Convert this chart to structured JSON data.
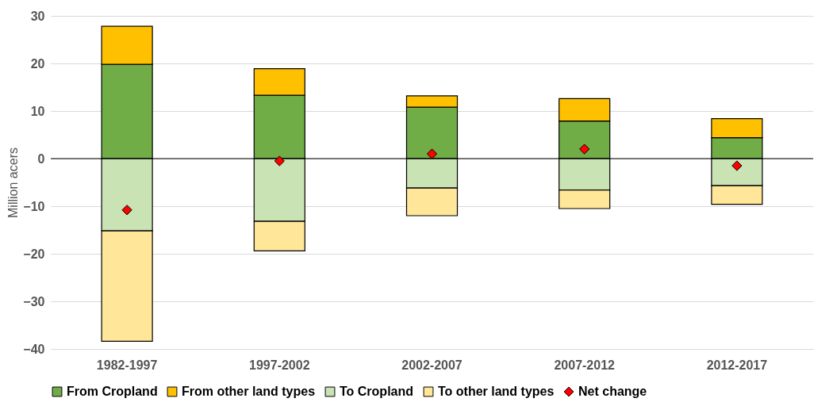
{
  "chart_data": {
    "type": "bar",
    "ylabel": "Million acers",
    "categories": [
      "1982-1997",
      "1997-2002",
      "2002-2007",
      "2007-2012",
      "2012-2017"
    ],
    "stacked": true,
    "series": [
      {
        "name": "From Cropland",
        "color": "#70ad47",
        "values": [
          19.8,
          13.3,
          10.8,
          7.9,
          4.4
        ]
      },
      {
        "name": "From other land types",
        "color": "#ffc000",
        "values": [
          8.0,
          5.6,
          2.4,
          4.7,
          4.0
        ]
      },
      {
        "name": "To Cropland",
        "color": "#c9e3b4",
        "values": [
          -15.2,
          -13.2,
          -6.2,
          -6.6,
          -5.7
        ]
      },
      {
        "name": "To other land types",
        "color": "#ffe699",
        "values": [
          -23.2,
          -6.2,
          -5.8,
          -3.9,
          -3.9
        ]
      },
      {
        "name": "Net change",
        "type": "scatter",
        "marker": "diamond",
        "color": "#ff0000",
        "values": [
          -10.8,
          -0.5,
          1.0,
          2.0,
          -1.5
        ]
      }
    ],
    "ylim": [
      -40,
      30
    ],
    "yticks": [
      -40,
      -30,
      -20,
      -10,
      0,
      10,
      20,
      30
    ],
    "grid": "y",
    "legend": "bottom",
    "ref_lines": [
      {
        "axis": "y",
        "value": 0,
        "color": "#000000"
      }
    ]
  }
}
